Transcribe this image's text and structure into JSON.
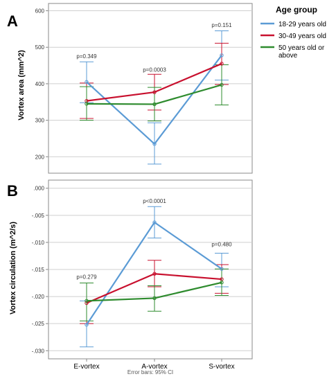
{
  "colors": {
    "series_18_29": "#5b9bd5",
    "series_30_49": "#c8102e",
    "series_50_plus": "#2e8b2e",
    "axis": "#888888",
    "grid": "#cfcfcf"
  },
  "legend": {
    "title": "Age group",
    "items": [
      "18-29 years old",
      "30-49 years old",
      "50 years old or above"
    ]
  },
  "footer": "Error bars: 95% CI",
  "chart_data": [
    {
      "panel_label": "A",
      "type": "line",
      "ylabel": "Vortex area (mm^2)",
      "ylim": [
        155,
        620
      ],
      "yticks": [
        200,
        300,
        400,
        500,
        600
      ],
      "ytick_labels": [
        "200",
        "300",
        "400",
        "500",
        "600"
      ],
      "categories": [
        "E-vortex",
        "A-vortex",
        "S-vortex"
      ],
      "grid": "horizontal",
      "series": [
        {
          "name": "18-29 years old",
          "values": [
            405,
            235,
            478
          ],
          "ci_low": [
            348,
            180,
            410
          ],
          "ci_high": [
            460,
            293,
            545
          ]
        },
        {
          "name": "30-49 years old",
          "values": [
            353,
            377,
            455
          ],
          "ci_low": [
            305,
            328,
            398
          ],
          "ci_high": [
            402,
            426,
            511
          ]
        },
        {
          "name": "50 years old or above",
          "values": [
            345,
            344,
            397
          ],
          "ci_low": [
            300,
            298,
            342
          ],
          "ci_high": [
            392,
            390,
            452
          ]
        }
      ],
      "annotations": [
        {
          "category": "E-vortex",
          "y": 470,
          "text": "p=0.349"
        },
        {
          "category": "A-vortex",
          "y": 433,
          "text": "p=0.0003"
        },
        {
          "category": "S-vortex",
          "y": 555,
          "text": "p=0.151"
        }
      ]
    },
    {
      "panel_label": "B",
      "type": "line",
      "ylabel": "Vortex circulation (m^2/s)",
      "ylim": [
        -0.0315,
        0.0015
      ],
      "yticks": [
        0.0,
        -0.005,
        -0.01,
        -0.015,
        -0.02,
        -0.025,
        -0.03
      ],
      "ytick_labels": [
        ".000",
        "-.005",
        "-.010",
        "-.015",
        "-.020",
        "-.025",
        "-.030"
      ],
      "categories": [
        "E-vortex",
        "A-vortex",
        "S-vortex"
      ],
      "xtick_labels": [
        "E-vortex",
        "A-vortex",
        "S-vortex"
      ],
      "grid": "horizontal",
      "series": [
        {
          "name": "18-29 years old",
          "values": [
            -0.0252,
            -0.0063,
            -0.0149
          ],
          "ci_low": [
            -0.0293,
            -0.0092,
            -0.0182
          ],
          "ci_high": [
            -0.0208,
            -0.0034,
            -0.012
          ]
        },
        {
          "name": "30-49 years old",
          "values": [
            -0.0212,
            -0.0158,
            -0.0168
          ],
          "ci_low": [
            -0.025,
            -0.0182,
            -0.0194
          ],
          "ci_high": [
            -0.0175,
            -0.0133,
            -0.0141
          ]
        },
        {
          "name": "50 years old or above",
          "values": [
            -0.0208,
            -0.0203,
            -0.0174
          ],
          "ci_low": [
            -0.0245,
            -0.0227,
            -0.0198
          ],
          "ci_high": [
            -0.0175,
            -0.018,
            -0.0149
          ]
        }
      ],
      "annotations": [
        {
          "category": "E-vortex",
          "y": -0.0167,
          "text": "p=0.279"
        },
        {
          "category": "A-vortex",
          "y": -0.0027,
          "text": "p<0.0001"
        },
        {
          "category": "S-vortex",
          "y": -0.0107,
          "text": "p=0.480"
        }
      ]
    }
  ]
}
